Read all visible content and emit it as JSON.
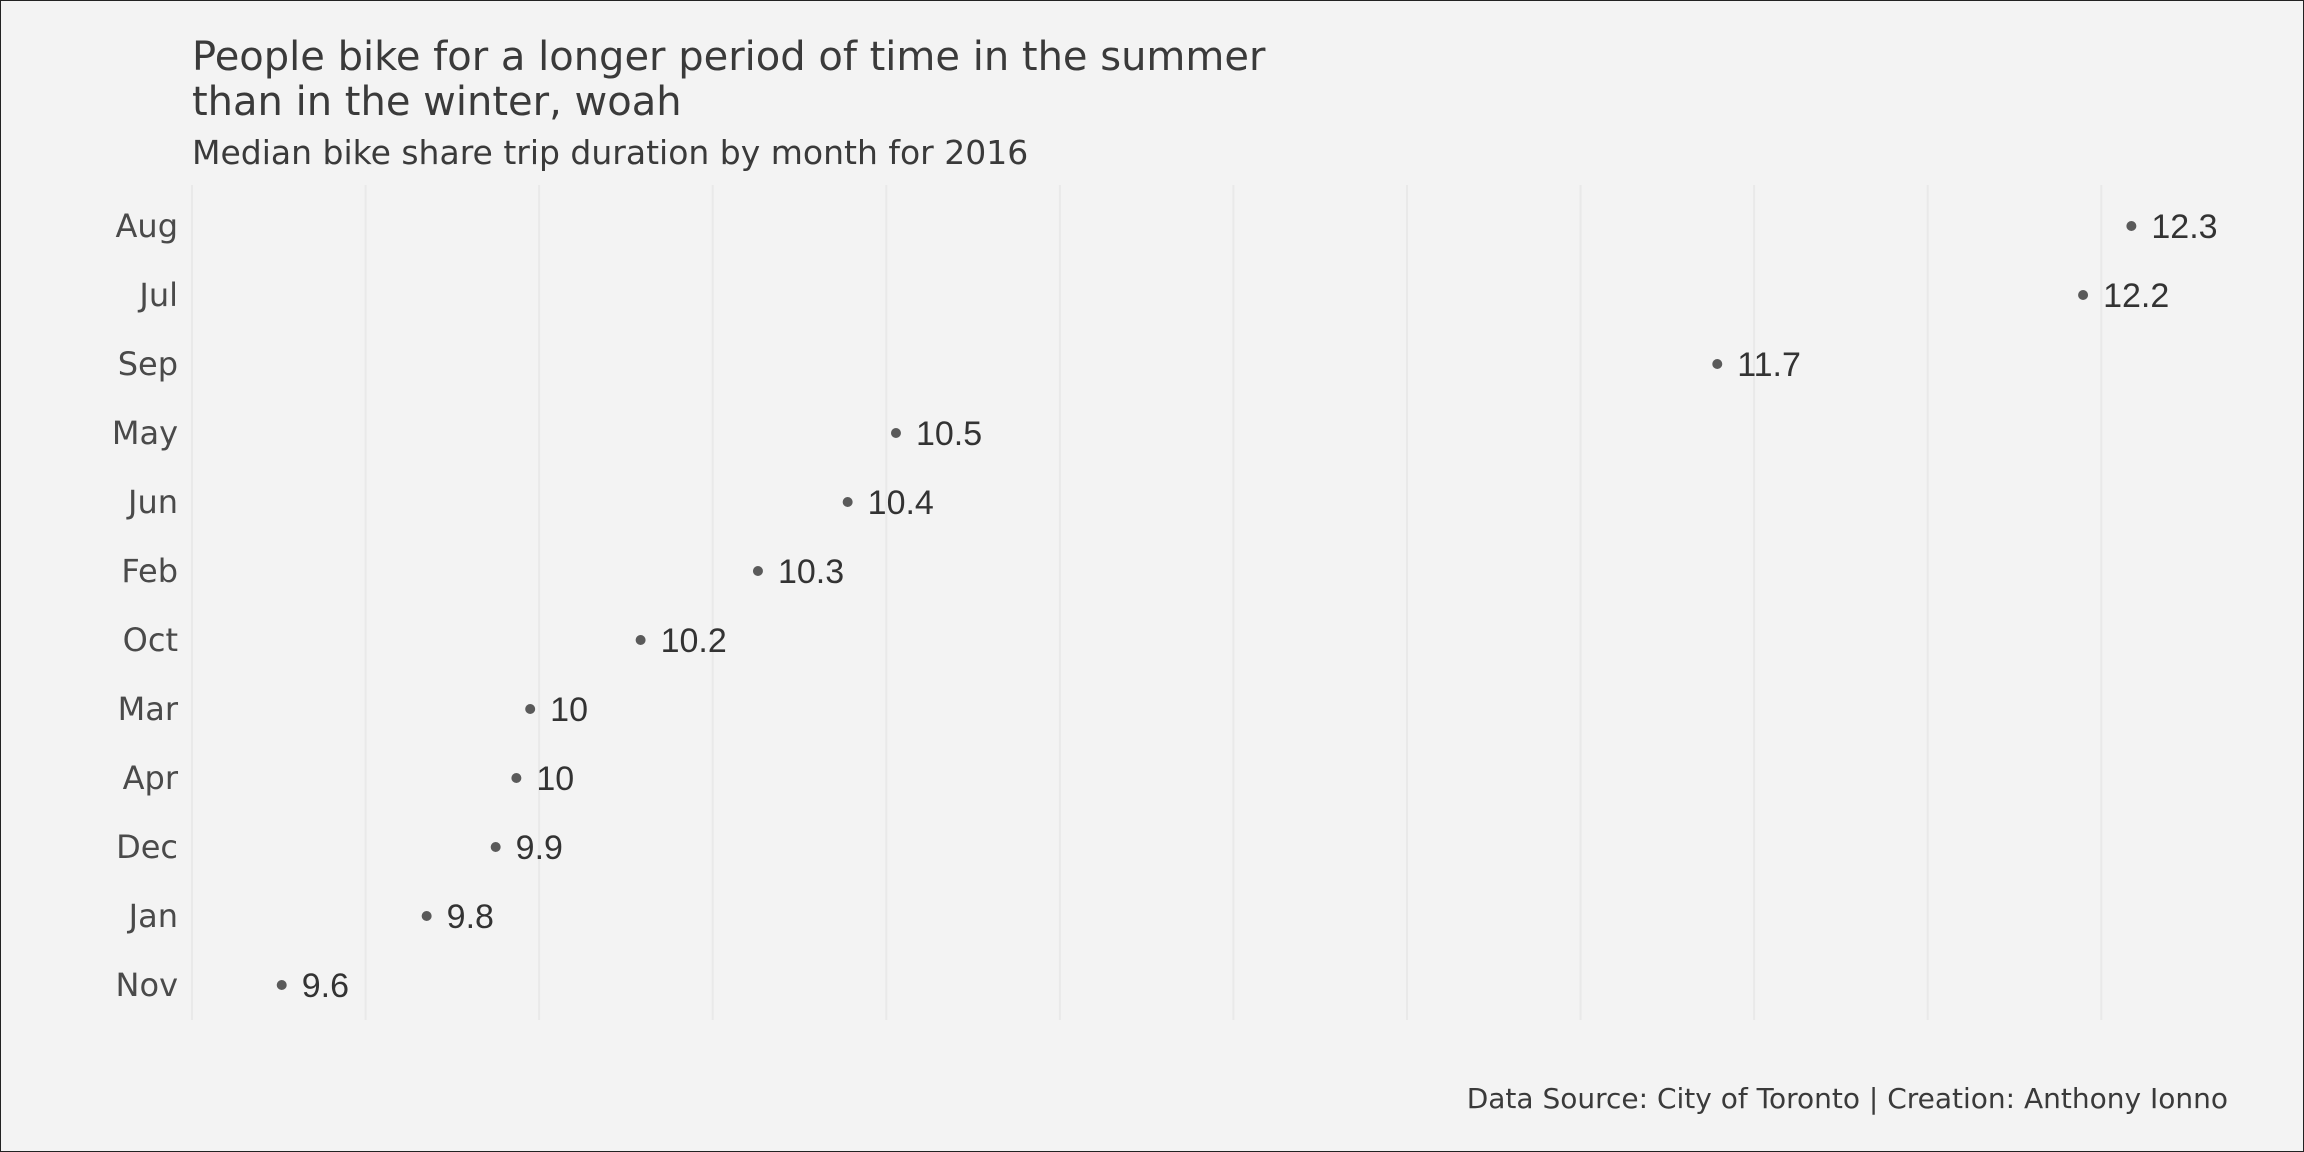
{
  "chart_data": {
    "type": "scatter",
    "title_lines": [
      "People bike for a longer period of time in the summer",
      "than in the winter, woah"
    ],
    "subtitle": "Median bike share trip duration by month for 2016",
    "caption": "Data Source: City of Toronto | Creation: Anthony Ionno",
    "xlabel": "",
    "ylabel": "",
    "xlim": [
      9.5,
      12.45
    ],
    "grid": "vertical",
    "categories": [
      "Aug",
      "Jul",
      "Sep",
      "May",
      "Jun",
      "Feb",
      "Oct",
      "Mar",
      "Apr",
      "Dec",
      "Jan",
      "Nov"
    ],
    "values": [
      12.31,
      12.24,
      11.71,
      10.52,
      10.45,
      10.32,
      10.15,
      9.99,
      9.97,
      9.94,
      9.84,
      9.63
    ],
    "labels": [
      "12.3",
      "12.2",
      "11.7",
      "10.5",
      "10.4",
      "10.3",
      "10.2",
      "10",
      "10",
      "9.9",
      "9.8",
      "9.6"
    ],
    "point_color": "#5a5a5a",
    "background": "#f3f3f3"
  }
}
